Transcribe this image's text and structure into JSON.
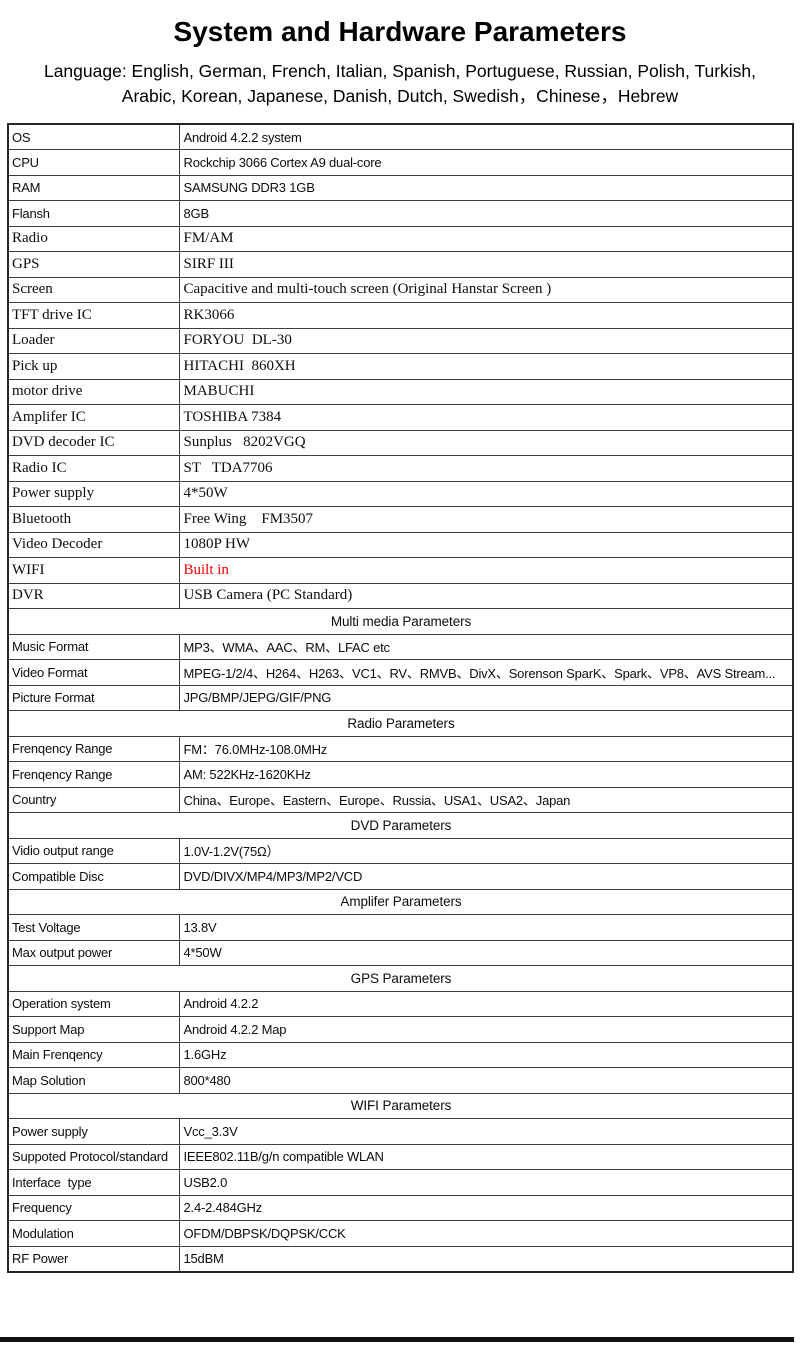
{
  "header": {
    "title": "System and Hardware Parameters",
    "language_line1": "Language: English, German, French, Italian, Spanish, Portuguese, Russian, Polish,  Turkish,",
    "language_line2": "Arabic, Korean, Japanese, Danish, Dutch, Swedish，Chinese，Hebrew"
  },
  "colors": {
    "highlight_red": "#fe0000",
    "border": "#3f3f3f"
  },
  "table": {
    "rows": [
      {
        "type": "spec",
        "font": "sans",
        "label": "OS",
        "value": "Android 4.2.2 system"
      },
      {
        "type": "spec",
        "font": "sans",
        "label": "CPU",
        "value": "Rockchip 3066 Cortex A9 dual-core"
      },
      {
        "type": "spec",
        "font": "sans",
        "label": "RAM",
        "value": "SAMSUNG DDR3 1GB"
      },
      {
        "type": "spec",
        "font": "sans",
        "label": "Flansh",
        "value": "8GB"
      },
      {
        "type": "spec",
        "font": "serif",
        "label": "Radio",
        "value": "FM/AM"
      },
      {
        "type": "spec",
        "font": "serif",
        "label": "GPS",
        "value": "SIRF III"
      },
      {
        "type": "spec",
        "font": "serif",
        "label": "Screen",
        "value": "Capacitive and multi-touch screen (Original Hanstar Screen )"
      },
      {
        "type": "spec",
        "font": "serif",
        "label": "TFT drive IC",
        "value": "RK3066"
      },
      {
        "type": "spec",
        "font": "serif",
        "label": "Loader",
        "value": "FORYOU  DL-30"
      },
      {
        "type": "spec",
        "font": "serif",
        "label": "Pick up",
        "value": "HITACHI  860XH"
      },
      {
        "type": "spec",
        "font": "serif",
        "label": "motor drive",
        "value": "MABUCHI"
      },
      {
        "type": "spec",
        "font": "serif",
        "label": "Amplifer IC",
        "value": "TOSHIBA 7384"
      },
      {
        "type": "spec",
        "font": "serif",
        "label": "DVD decoder IC",
        "value": "Sunplus   8202VGQ"
      },
      {
        "type": "spec",
        "font": "serif",
        "label": "Radio IC",
        "value": "ST   TDA7706"
      },
      {
        "type": "spec",
        "font": "serif",
        "label": "Power supply",
        "value": "4*50W"
      },
      {
        "type": "spec",
        "font": "serif",
        "label": "Bluetooth",
        "value": "Free Wing    FM3507"
      },
      {
        "type": "spec",
        "font": "serif",
        "label": "Video Decoder",
        "value": "1080P HW"
      },
      {
        "type": "spec",
        "font": "serif",
        "label": "WIFI",
        "value": "Built in",
        "color": "red"
      },
      {
        "type": "spec",
        "font": "serif",
        "label": "DVR",
        "value": "USB Camera (PC Standard)"
      },
      {
        "type": "section",
        "label": "Multi media Parameters"
      },
      {
        "type": "spec",
        "font": "sans",
        "label": "Music Format",
        "value": "MP3、WMA、AAC、RM、LFAC etc"
      },
      {
        "type": "spec",
        "font": "sans",
        "label": "Video Format",
        "value": "MPEG-1/2/4、H264、H263、VC1、RV、RMVB、DivX、Sorenson SparK、Spark、VP8、AVS Stream..."
      },
      {
        "type": "spec",
        "font": "sans",
        "label": "Picture Format",
        "value": "JPG/BMP/JEPG/GIF/PNG"
      },
      {
        "type": "section",
        "label": "Radio Parameters"
      },
      {
        "type": "spec",
        "font": "sans",
        "label": "Frenqency Range",
        "value": "FM：76.0MHz-108.0MHz"
      },
      {
        "type": "spec",
        "font": "sans",
        "label": "Frenqency Range",
        "value": "AM: 522KHz-1620KHz"
      },
      {
        "type": "spec",
        "font": "sans",
        "label": "Country",
        "value": "China、Europe、Eastern、Europe、Russia、USA1、USA2、Japan"
      },
      {
        "type": "section",
        "label": "DVD Parameters"
      },
      {
        "type": "spec",
        "font": "sans",
        "label": "Vidio output range",
        "value": "1.0V-1.2V(75Ω）"
      },
      {
        "type": "spec",
        "font": "sans",
        "label": "Compatible Disc",
        "value": "DVD/DIVX/MP4/MP3/MP2/VCD"
      },
      {
        "type": "section",
        "label": "Amplifer Parameters"
      },
      {
        "type": "spec",
        "font": "sans",
        "label": "Test Voltage",
        "value": "13.8V"
      },
      {
        "type": "spec",
        "font": "sans",
        "label": "Max output power",
        "value": "4*50W"
      },
      {
        "type": "section",
        "label": "GPS Parameters"
      },
      {
        "type": "spec",
        "font": "sans",
        "label": "Operation system",
        "value": "Android 4.2.2"
      },
      {
        "type": "spec",
        "font": "sans",
        "label": "Support Map",
        "value": "Android 4.2.2 Map"
      },
      {
        "type": "spec",
        "font": "sans",
        "label": "Main Frenqency",
        "value": "1.6GHz"
      },
      {
        "type": "spec",
        "font": "sans",
        "label": "Map Solution",
        "value": "800*480"
      },
      {
        "type": "section",
        "label": "WIFI Parameters"
      },
      {
        "type": "spec",
        "font": "sans",
        "label": "Power supply",
        "value": "Vcc_3.3V"
      },
      {
        "type": "spec",
        "font": "sans",
        "label": "Suppoted Protocol/standard",
        "value": "IEEE802.11B/g/n compatible WLAN"
      },
      {
        "type": "spec",
        "font": "sans",
        "label": "Interface  type",
        "value": "USB2.0"
      },
      {
        "type": "spec",
        "font": "sans",
        "label": "Frequency",
        "value": "2.4-2.484GHz"
      },
      {
        "type": "spec",
        "font": "sans",
        "label": "Modulation",
        "value": "OFDM/DBPSK/DQPSK/CCK"
      },
      {
        "type": "spec",
        "font": "sans",
        "label": "RF Power",
        "value": "15dBM"
      }
    ]
  }
}
